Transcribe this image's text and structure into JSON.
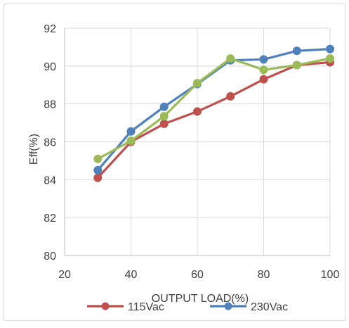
{
  "chart_data": {
    "type": "line",
    "title": "",
    "xlabel": "OUTPUT LOAD(%)",
    "ylabel": "Eff(%)",
    "xlim": [
      20,
      100
    ],
    "ylim": [
      80,
      92
    ],
    "xticks": [
      20,
      40,
      60,
      80,
      100
    ],
    "yticks": [
      80,
      82,
      84,
      86,
      88,
      90,
      92
    ],
    "grid": "horizontal",
    "legend_position": "bottom",
    "x": [
      30,
      40,
      50,
      60,
      70,
      80,
      90,
      100
    ],
    "series": [
      {
        "name": "115Vac",
        "color": "#C0504D",
        "values": [
          84.1,
          86.0,
          86.95,
          87.6,
          88.4,
          89.3,
          90.05,
          90.2
        ],
        "in_legend": true
      },
      {
        "name": "230Vac",
        "color": "#4F81BD",
        "values": [
          84.5,
          86.55,
          87.85,
          89.05,
          90.3,
          90.35,
          90.8,
          90.9
        ],
        "in_legend": true
      },
      {
        "name": "",
        "color": "#9BBB59",
        "values": [
          85.1,
          86.05,
          87.35,
          89.1,
          90.4,
          89.8,
          90.05,
          90.4
        ],
        "in_legend": false
      }
    ]
  }
}
